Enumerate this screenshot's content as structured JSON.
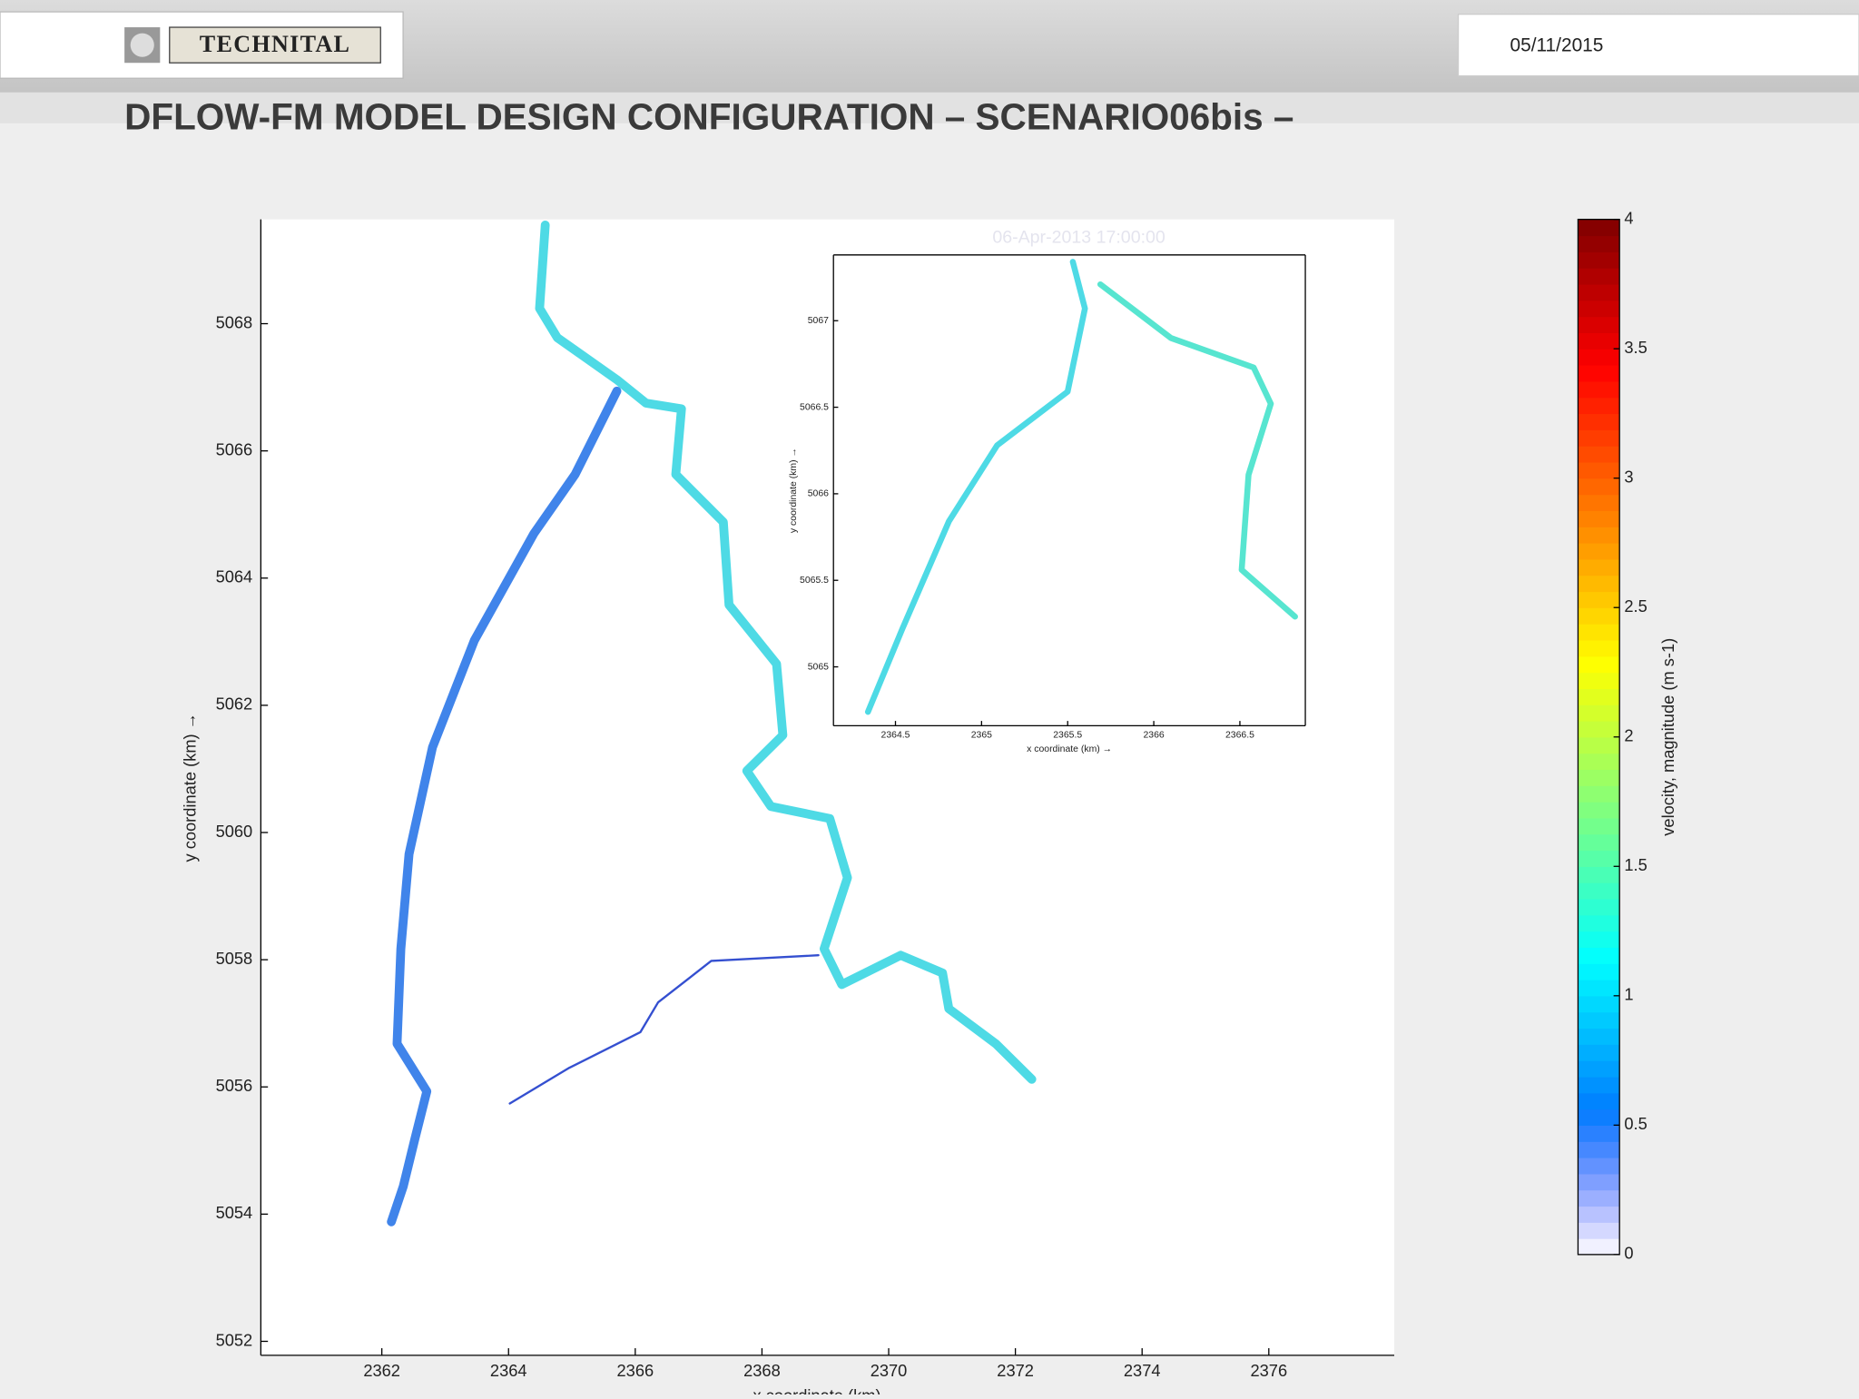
{
  "header": {
    "logo": "TECHNITAL",
    "date": "05/11/2015",
    "title": "DFLOW-FM MODEL DESIGN CONFIGURATION – SCENARIO06bis –"
  },
  "chart_data": [
    {
      "type": "line",
      "annotation": "06-Apr-2013 17:00:00",
      "xlabel": "x coordinate (km) →",
      "ylabel": "y coordinate (km) →",
      "xlim": [
        2360.09,
        2377.98
      ],
      "ylim": [
        5051.78,
        5069.64
      ],
      "xticks": [
        2362,
        2364,
        2366,
        2368,
        2370,
        2372,
        2374,
        2376
      ],
      "yticks": [
        5052,
        5054,
        5056,
        5058,
        5060,
        5062,
        5064,
        5066,
        5068
      ],
      "series": [
        {
          "color": "#2fd3e0",
          "x": [
            2364.58,
            2364.49,
            2364.77,
            2365.71,
            2366.17,
            2366.73,
            2366.64,
            2367.39,
            2367.48,
            2368.23,
            2368.33,
            2367.76,
            2368.14,
            2369.07,
            2369.35,
            2368.98,
            2369.26,
            2370.19,
            2370.85,
            2370.95,
            2371.69,
            2372.26
          ],
          "y": [
            5069.55,
            5068.24,
            5067.78,
            5067.12,
            5066.75,
            5066.66,
            5065.63,
            5064.88,
            5063.58,
            5062.65,
            5061.53,
            5060.97,
            5060.41,
            5060.22,
            5059.29,
            5058.17,
            5057.61,
            5058.07,
            5057.79,
            5057.23,
            5056.68,
            5056.12
          ]
        },
        {
          "color": "#1f6fe6",
          "x": [
            2365.71,
            2365.05,
            2364.4,
            2363.46,
            2362.8,
            2362.43,
            2362.3,
            2362.24,
            2362.71,
            2362.52,
            2362.34,
            2362.15
          ],
          "y": [
            5066.94,
            5065.63,
            5064.7,
            5063.02,
            5061.34,
            5059.66,
            5058.17,
            5056.68,
            5055.93,
            5055.18,
            5054.44,
            5053.88
          ]
        },
        {
          "color": "#1030c8",
          "x": [
            2368.89,
            2367.2,
            2366.36,
            2366.08,
            2364.96,
            2364.02
          ],
          "y": [
            5058.07,
            5057.98,
            5057.33,
            5056.86,
            5056.3,
            5055.74
          ]
        }
      ]
    },
    {
      "type": "line",
      "xlabel": "x coordinate (km) →",
      "ylabel": "y coordinate (km) →",
      "xlim": [
        2364.14,
        2366.88
      ],
      "ylim": [
        5064.66,
        5067.38
      ],
      "xticks": [
        2364.5,
        2365,
        2365.5,
        2366,
        2366.5
      ],
      "yticks": [
        5065,
        5065.5,
        5066,
        5066.5,
        5067
      ],
      "series": [
        {
          "color": "#2fd3e0",
          "x": [
            2365.53,
            2365.6,
            2365.5,
            2365.09,
            2364.81,
            2364.54,
            2364.34
          ],
          "y": [
            5067.34,
            5067.07,
            5066.59,
            5066.28,
            5065.84,
            5065.22,
            5064.74
          ]
        },
        {
          "color": "#39e0c8",
          "x": [
            2365.69,
            2366.1,
            2366.58,
            2366.68,
            2366.55,
            2366.51,
            2366.82
          ],
          "y": [
            5067.21,
            5066.9,
            5066.73,
            5066.52,
            5066.11,
            5065.56,
            5065.29
          ]
        }
      ]
    },
    {
      "type": "colorbar",
      "label": "velocity, magnitude (m s-1)",
      "colormap": "jet",
      "ylim": [
        0,
        4
      ],
      "yticks": [
        0,
        0.5,
        1,
        1.5,
        2,
        2.5,
        3,
        3.5,
        4
      ]
    }
  ]
}
